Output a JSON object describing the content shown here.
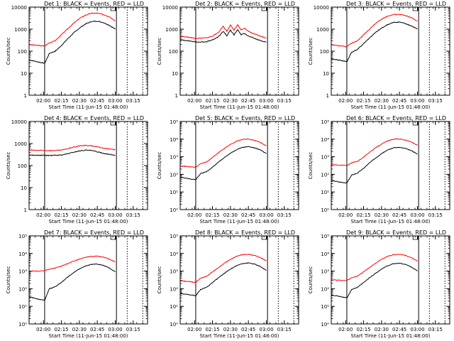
{
  "colors": {
    "events": "#000000",
    "lld": "#ff0000",
    "axes": "#000000",
    "background": "#ffffff"
  },
  "xaxis": {
    "tick_labels": [
      "02:00",
      "02:15",
      "02:30",
      "02:45",
      "03:00",
      "03:15"
    ],
    "label": "Start Time (11-Jun-15 01:48:00)"
  },
  "chart_data": [
    {
      "type": "line",
      "title": "Det 1: BLACK = Events, RED = LLD",
      "ylabel": "Counts/sec",
      "xlabel": "Start Time (11-Jun-15 01:48:00)",
      "y_scale": "log",
      "ylim": [
        1,
        10000
      ],
      "y_ticks": [
        "1",
        "10",
        "100",
        "1000",
        "10000"
      ],
      "xlim": [
        "01:48",
        "03:27"
      ],
      "vlines_solid": [
        "02:01",
        "03:01"
      ],
      "vlines_dashed": [
        "03:10",
        "03:23"
      ],
      "series": [
        {
          "name": "Events",
          "color": "#000000",
          "x": [
            "01:48",
            "01:56",
            "02:01",
            "02:05",
            "02:10",
            "02:15",
            "02:20",
            "02:25",
            "02:30",
            "02:35",
            "02:40",
            "02:45",
            "02:50",
            "02:55",
            "03:00"
          ],
          "y": [
            40,
            32,
            28,
            80,
            100,
            180,
            350,
            650,
            1100,
            1700,
            2200,
            2300,
            2000,
            1500,
            1000
          ]
        },
        {
          "name": "LLD",
          "color": "#ff0000",
          "x": [
            "01:48",
            "01:56",
            "02:01",
            "02:05",
            "02:10",
            "02:15",
            "02:20",
            "02:25",
            "02:30",
            "02:35",
            "02:40",
            "02:45",
            "02:50",
            "02:55",
            "03:00"
          ],
          "y": [
            200,
            180,
            170,
            240,
            300,
            550,
            1000,
            1800,
            3000,
            4300,
            5200,
            5300,
            4600,
            3700,
            2400
          ]
        }
      ]
    },
    {
      "type": "line",
      "title": "Det 2: BLACK = Events, RED = LLD",
      "ylabel": "Counts/sec",
      "xlabel": "Start Time (11-Jun-15 01:48:00)",
      "y_scale": "log",
      "ylim": [
        1,
        10000
      ],
      "y_ticks": [
        "1",
        "10",
        "100",
        "1000",
        "10000"
      ],
      "xlim": [
        "01:48",
        "03:27"
      ],
      "vlines_solid": [
        "02:01",
        "03:01"
      ],
      "vlines_dashed": [
        "03:10",
        "03:23"
      ],
      "series": [
        {
          "name": "Events",
          "color": "#000000",
          "x": [
            "01:48",
            "01:56",
            "02:01",
            "02:05",
            "02:10",
            "02:15",
            "02:20",
            "02:24",
            "02:27",
            "02:30",
            "02:33",
            "02:36",
            "02:39",
            "02:42",
            "02:45",
            "02:50",
            "02:55",
            "03:00"
          ],
          "y": [
            330,
            290,
            260,
            260,
            270,
            320,
            450,
            800,
            500,
            900,
            550,
            950,
            550,
            650,
            480,
            380,
            300,
            260
          ]
        },
        {
          "name": "LLD",
          "color": "#ff0000",
          "x": [
            "01:48",
            "01:56",
            "02:01",
            "02:05",
            "02:10",
            "02:15",
            "02:20",
            "02:24",
            "02:27",
            "02:30",
            "02:33",
            "02:36",
            "02:39",
            "02:42",
            "02:45",
            "02:50",
            "02:55",
            "03:00"
          ],
          "y": [
            480,
            420,
            380,
            390,
            400,
            480,
            700,
            1350,
            800,
            1500,
            900,
            1600,
            900,
            1100,
            800,
            600,
            480,
            400
          ]
        }
      ]
    },
    {
      "type": "line",
      "title": "Det 3: BLACK = Events, RED = LLD",
      "ylabel": "Counts/sec",
      "xlabel": "Start Time (11-Jun-15 01:48:00)",
      "y_scale": "log",
      "ylim": [
        1,
        10000
      ],
      "y_ticks": [
        "1",
        "10",
        "100",
        "1000",
        "10000"
      ],
      "xlim": [
        "01:48",
        "03:27"
      ],
      "vlines_solid": [
        "02:01",
        "03:01"
      ],
      "vlines_dashed": [
        "03:10",
        "03:23"
      ],
      "series": [
        {
          "name": "Events",
          "color": "#000000",
          "x": [
            "01:48",
            "01:56",
            "02:01",
            "02:05",
            "02:10",
            "02:15",
            "02:20",
            "02:25",
            "02:30",
            "02:35",
            "02:40",
            "02:45",
            "02:50",
            "02:55",
            "03:00"
          ],
          "y": [
            45,
            38,
            33,
            90,
            120,
            220,
            400,
            700,
            1100,
            1600,
            2000,
            2100,
            1800,
            1400,
            1000
          ]
        },
        {
          "name": "LLD",
          "color": "#ff0000",
          "x": [
            "01:48",
            "01:56",
            "02:01",
            "02:05",
            "02:10",
            "02:15",
            "02:20",
            "02:25",
            "02:30",
            "02:35",
            "02:40",
            "02:45",
            "02:50",
            "02:55",
            "03:00"
          ],
          "y": [
            190,
            170,
            160,
            230,
            300,
            550,
            1000,
            1800,
            2800,
            3900,
            4600,
            4700,
            4100,
            3300,
            2300
          ]
        }
      ]
    },
    {
      "type": "line",
      "title": "Det 4: BLACK = Events, RED = LLD",
      "ylabel": "Counts/sec",
      "xlabel": "Start Time (11-Jun-15 01:48:00)",
      "y_scale": "log",
      "ylim": [
        1,
        10000
      ],
      "y_ticks": [
        "1",
        "10",
        "100",
        "1000",
        "10000"
      ],
      "xlim": [
        "01:48",
        "03:27"
      ],
      "vlines_solid": [
        "02:01",
        "03:01"
      ],
      "vlines_dashed": [
        "03:10",
        "03:23"
      ],
      "series": [
        {
          "name": "Events",
          "color": "#000000",
          "x": [
            "01:48",
            "01:56",
            "02:01",
            "02:05",
            "02:10",
            "02:15",
            "02:20",
            "02:25",
            "02:30",
            "02:35",
            "02:40",
            "02:45",
            "02:50",
            "02:55",
            "03:00"
          ],
          "y": [
            300,
            290,
            290,
            285,
            290,
            300,
            340,
            400,
            460,
            500,
            480,
            420,
            360,
            320,
            290
          ]
        },
        {
          "name": "LLD",
          "color": "#ff0000",
          "x": [
            "01:48",
            "01:56",
            "02:01",
            "02:05",
            "02:10",
            "02:15",
            "02:20",
            "02:25",
            "02:30",
            "02:35",
            "02:40",
            "02:45",
            "02:50",
            "02:55",
            "03:00"
          ],
          "y": [
            500,
            490,
            480,
            480,
            480,
            500,
            580,
            680,
            780,
            820,
            790,
            700,
            620,
            560,
            520
          ]
        }
      ]
    },
    {
      "type": "line",
      "title": "Det 5: BLACK = Events, RED = LLD",
      "ylabel": "Counts/sec",
      "xlabel": "Start Time (11-Jun-15 01:48:00)",
      "y_scale": "log",
      "ylim": [
        1,
        100000
      ],
      "y_ticks": [
        "10⁰",
        "10¹",
        "10²",
        "10³",
        "10⁴",
        "10⁵"
      ],
      "xlim": [
        "01:48",
        "03:27"
      ],
      "vlines_solid": [
        "02:01",
        "03:01"
      ],
      "vlines_dashed": [
        "03:10",
        "03:23"
      ],
      "series": [
        {
          "name": "Events",
          "color": "#000000",
          "x": [
            "01:48",
            "01:56",
            "02:01",
            "02:05",
            "02:10",
            "02:15",
            "02:20",
            "02:25",
            "02:30",
            "02:35",
            "02:40",
            "02:45",
            "02:50",
            "02:55",
            "03:00"
          ],
          "y": [
            70,
            55,
            50,
            110,
            140,
            250,
            500,
            900,
            1600,
            2500,
            3400,
            3700,
            3200,
            2400,
            1500
          ]
        },
        {
          "name": "LLD",
          "color": "#ff0000",
          "x": [
            "01:48",
            "01:56",
            "02:01",
            "02:05",
            "02:10",
            "02:15",
            "02:20",
            "02:25",
            "02:30",
            "02:35",
            "02:40",
            "02:45",
            "02:50",
            "02:55",
            "03:00"
          ],
          "y": [
            300,
            270,
            250,
            400,
            500,
            900,
            1700,
            3000,
            5000,
            7500,
            9500,
            10000,
            8500,
            6500,
            4200
          ]
        }
      ]
    },
    {
      "type": "line",
      "title": "Det 6: BLACK = Events, RED = LLD",
      "ylabel": "Counts/sec",
      "xlabel": "Start Time (11-Jun-15 01:48:00)",
      "y_scale": "log",
      "ylim": [
        1,
        100000
      ],
      "y_ticks": [
        "10⁰",
        "10¹",
        "10²",
        "10³",
        "10⁴",
        "10⁵"
      ],
      "xlim": [
        "01:48",
        "03:27"
      ],
      "vlines_solid": [
        "02:01",
        "03:01"
      ],
      "vlines_dashed": [
        "03:10",
        "03:23"
      ],
      "series": [
        {
          "name": "Events",
          "color": "#000000",
          "x": [
            "01:48",
            "01:56",
            "02:01",
            "02:05",
            "02:10",
            "02:15",
            "02:20",
            "02:25",
            "02:30",
            "02:35",
            "02:40",
            "02:45",
            "02:50",
            "02:55",
            "03:00"
          ],
          "y": [
            45,
            35,
            32,
            90,
            120,
            220,
            450,
            850,
            1500,
            2400,
            3200,
            3400,
            2900,
            2200,
            1400
          ]
        },
        {
          "name": "LLD",
          "color": "#ff0000",
          "x": [
            "01:48",
            "01:56",
            "02:01",
            "02:05",
            "02:10",
            "02:15",
            "02:20",
            "02:25",
            "02:30",
            "02:35",
            "02:40",
            "02:45",
            "02:50",
            "02:55",
            "03:00"
          ],
          "y": [
            350,
            330,
            320,
            450,
            550,
            950,
            1800,
            3200,
            5200,
            7800,
            9800,
            10200,
            8800,
            6800,
            4500
          ]
        }
      ]
    },
    {
      "type": "line",
      "title": "Det 7: BLACK = Events, RED = LLD",
      "ylabel": "Counts/sec",
      "xlabel": "Start Time (11-Jun-15 01:48:00)",
      "y_scale": "log",
      "ylim": [
        1,
        100000
      ],
      "y_ticks": [
        "10⁰",
        "10¹",
        "10²",
        "10³",
        "10⁴",
        "10⁵"
      ],
      "xlim": [
        "01:48",
        "03:27"
      ],
      "vlines_solid": [
        "02:01",
        "03:01"
      ],
      "vlines_dashed": [
        "03:10",
        "03:23"
      ],
      "series": [
        {
          "name": "Events",
          "color": "#000000",
          "x": [
            "01:48",
            "01:56",
            "02:01",
            "02:05",
            "02:10",
            "02:15",
            "02:20",
            "02:25",
            "02:30",
            "02:35",
            "02:40",
            "02:45",
            "02:50",
            "02:55",
            "03:00"
          ],
          "y": [
            35,
            25,
            22,
            100,
            130,
            230,
            450,
            800,
            1300,
            1900,
            2400,
            2500,
            2100,
            1500,
            900
          ]
        },
        {
          "name": "LLD",
          "color": "#ff0000",
          "x": [
            "01:48",
            "01:56",
            "02:01",
            "02:05",
            "02:10",
            "02:15",
            "02:20",
            "02:25",
            "02:30",
            "02:35",
            "02:40",
            "02:45",
            "02:50",
            "02:55",
            "03:00"
          ],
          "y": [
            1000,
            1000,
            1050,
            1300,
            1500,
            1900,
            2600,
            3600,
            4800,
            6000,
            6800,
            7000,
            6200,
            4800,
            3300
          ]
        }
      ]
    },
    {
      "type": "line",
      "title": "Det 8: BLACK = Events, RED = LLD",
      "ylabel": "Counts/sec",
      "xlabel": "Start Time (11-Jun-15 01:48:00)",
      "y_scale": "log",
      "ylim": [
        1,
        100000
      ],
      "y_ticks": [
        "10⁰",
        "10¹",
        "10²",
        "10³",
        "10⁴",
        "10⁵"
      ],
      "xlim": [
        "01:48",
        "03:27"
      ],
      "vlines_solid": [
        "02:01",
        "03:01"
      ],
      "vlines_dashed": [
        "03:10",
        "03:23"
      ],
      "series": [
        {
          "name": "Events",
          "color": "#000000",
          "x": [
            "01:48",
            "01:56",
            "02:01",
            "02:05",
            "02:10",
            "02:15",
            "02:20",
            "02:25",
            "02:30",
            "02:35",
            "02:40",
            "02:45",
            "02:50",
            "02:55",
            "03:00"
          ],
          "y": [
            55,
            45,
            40,
            90,
            120,
            220,
            420,
            750,
            1300,
            2000,
            2700,
            2900,
            2500,
            1800,
            1100
          ]
        },
        {
          "name": "LLD",
          "color": "#ff0000",
          "x": [
            "01:48",
            "01:56",
            "02:01",
            "02:05",
            "02:10",
            "02:15",
            "02:20",
            "02:25",
            "02:30",
            "02:35",
            "02:40",
            "02:45",
            "02:50",
            "02:55",
            "03:00"
          ],
          "y": [
            280,
            250,
            230,
            400,
            500,
            900,
            1600,
            2800,
            4600,
            6800,
            8600,
            9000,
            7800,
            5800,
            3800
          ]
        }
      ]
    },
    {
      "type": "line",
      "title": "Det 9: BLACK = Events, RED = LLD",
      "ylabel": "Counts/sec",
      "xlabel": "Start Time (11-Jun-15 01:48:00)",
      "y_scale": "log",
      "ylim": [
        1,
        100000
      ],
      "y_ticks": [
        "10⁰",
        "10¹",
        "10²",
        "10³",
        "10⁴",
        "10⁵"
      ],
      "xlim": [
        "01:48",
        "03:27"
      ],
      "vlines_solid": [
        "02:01",
        "03:01"
      ],
      "vlines_dashed": [
        "03:10",
        "03:23"
      ],
      "series": [
        {
          "name": "Events",
          "color": "#000000",
          "x": [
            "01:48",
            "01:56",
            "02:01",
            "02:05",
            "02:10",
            "02:15",
            "02:20",
            "02:25",
            "02:30",
            "02:35",
            "02:40",
            "02:45",
            "02:50",
            "02:55",
            "03:00"
          ],
          "y": [
            45,
            35,
            30,
            90,
            120,
            220,
            420,
            750,
            1300,
            2000,
            2600,
            2800,
            2400,
            1700,
            1000
          ]
        },
        {
          "name": "LLD",
          "color": "#ff0000",
          "x": [
            "01:48",
            "01:56",
            "02:01",
            "02:05",
            "02:10",
            "02:15",
            "02:20",
            "02:25",
            "02:30",
            "02:35",
            "02:40",
            "02:45",
            "02:50",
            "02:55",
            "03:00"
          ],
          "y": [
            320,
            300,
            290,
            420,
            520,
            900,
            1600,
            2800,
            4600,
            6800,
            8500,
            8900,
            7700,
            5700,
            3700
          ]
        }
      ]
    }
  ]
}
